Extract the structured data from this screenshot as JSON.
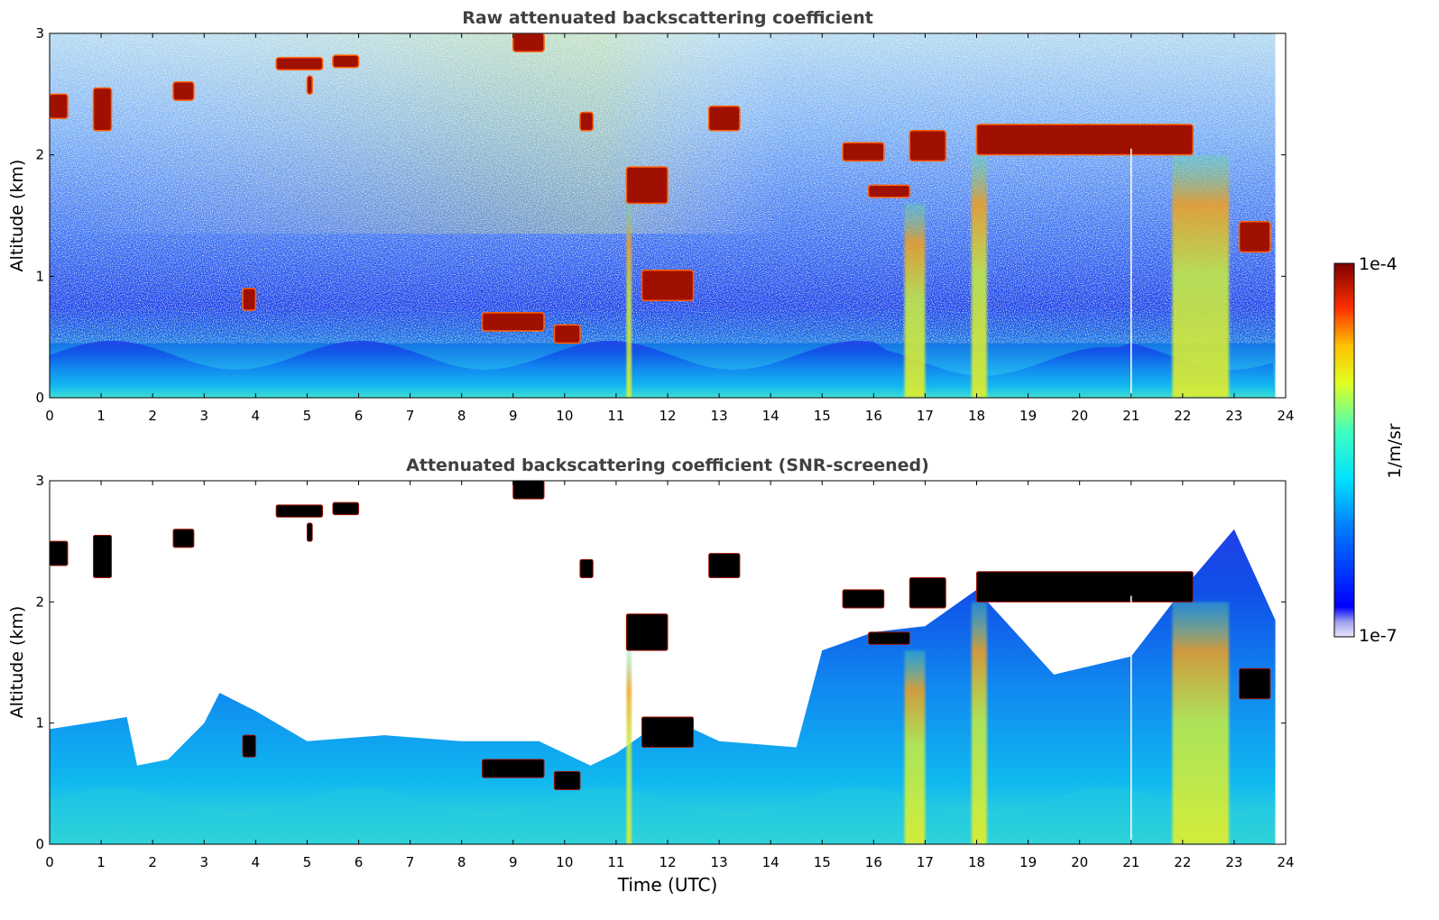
{
  "chart_data": [
    {
      "type": "heatmap",
      "title": "Raw attenuated backscattering coefficient",
      "xlabel": "",
      "ylabel": "Altitude (km)",
      "xlim": [
        0,
        24
      ],
      "ylim": [
        0,
        3
      ],
      "xticks": [
        "0",
        "1",
        "2",
        "3",
        "4",
        "5",
        "6",
        "7",
        "8",
        "9",
        "10",
        "11",
        "12",
        "13",
        "14",
        "15",
        "16",
        "17",
        "18",
        "19",
        "20",
        "21",
        "22",
        "23",
        "24"
      ],
      "yticks": [
        "0",
        "1",
        "2",
        "3"
      ],
      "grid": false,
      "colorscale": "jet, log",
      "clouds": [
        {
          "t0": 0.0,
          "t1": 0.35,
          "z0": 2.3,
          "z1": 2.5
        },
        {
          "t0": 0.85,
          "t1": 1.2,
          "z0": 2.2,
          "z1": 2.55
        },
        {
          "t0": 2.4,
          "t1": 2.8,
          "z0": 2.45,
          "z1": 2.6
        },
        {
          "t0": 4.4,
          "t1": 5.3,
          "z0": 2.7,
          "z1": 2.8
        },
        {
          "t0": 5.5,
          "t1": 6.0,
          "z0": 2.72,
          "z1": 2.82
        },
        {
          "t0": 5.0,
          "t1": 5.1,
          "z0": 2.5,
          "z1": 2.65
        },
        {
          "t0": 9.0,
          "t1": 9.6,
          "z0": 2.85,
          "z1": 3.0
        },
        {
          "t0": 10.3,
          "t1": 10.55,
          "z0": 2.2,
          "z1": 2.35
        },
        {
          "t0": 11.2,
          "t1": 12.0,
          "z0": 1.6,
          "z1": 1.9
        },
        {
          "t0": 12.8,
          "t1": 13.4,
          "z0": 2.2,
          "z1": 2.4
        },
        {
          "t0": 15.4,
          "t1": 16.2,
          "z0": 1.95,
          "z1": 2.1
        },
        {
          "t0": 16.7,
          "t1": 17.4,
          "z0": 1.95,
          "z1": 2.2
        },
        {
          "t0": 15.9,
          "t1": 16.7,
          "z0": 1.65,
          "z1": 1.75
        },
        {
          "t0": 18.0,
          "t1": 22.2,
          "z0": 2.0,
          "z1": 2.25
        },
        {
          "t0": 8.4,
          "t1": 9.6,
          "z0": 0.55,
          "z1": 0.7
        },
        {
          "t0": 9.8,
          "t1": 10.3,
          "z0": 0.45,
          "z1": 0.6
        },
        {
          "t0": 11.5,
          "t1": 12.5,
          "z0": 0.8,
          "z1": 1.05
        },
        {
          "t0": 23.1,
          "t1": 23.7,
          "z0": 1.2,
          "z1": 1.45
        },
        {
          "t0": 3.75,
          "t1": 4.0,
          "z0": 0.72,
          "z1": 0.9
        }
      ],
      "plumes": [
        {
          "t0": 21.8,
          "t1": 22.9,
          "z1": 2.0
        },
        {
          "t0": 16.6,
          "t1": 17.0,
          "z1": 1.6
        },
        {
          "t0": 17.9,
          "t1": 18.2,
          "z1": 2.0
        },
        {
          "t0": 11.2,
          "t1": 11.3,
          "z1": 1.6
        }
      ]
    },
    {
      "type": "heatmap",
      "title": "Attenuated backscattering coefficient (SNR-screened)",
      "xlabel": "Time (UTC)",
      "ylabel": "Altitude (km)",
      "xlim": [
        0,
        24
      ],
      "ylim": [
        0,
        3
      ],
      "xticks": [
        "0",
        "1",
        "2",
        "3",
        "4",
        "5",
        "6",
        "7",
        "8",
        "9",
        "10",
        "11",
        "12",
        "13",
        "14",
        "15",
        "16",
        "17",
        "18",
        "19",
        "20",
        "21",
        "22",
        "23",
        "24"
      ],
      "yticks": [
        "0",
        "1",
        "2",
        "3"
      ],
      "grid": false,
      "colorscale": "jet, log",
      "screen_top_km": [
        [
          0,
          0.95
        ],
        [
          1.5,
          1.05
        ],
        [
          1.7,
          0.65
        ],
        [
          2.3,
          0.7
        ],
        [
          3.0,
          1.0
        ],
        [
          3.3,
          1.25
        ],
        [
          4.0,
          1.1
        ],
        [
          5.0,
          0.85
        ],
        [
          6.5,
          0.9
        ],
        [
          8.0,
          0.85
        ],
        [
          9.5,
          0.85
        ],
        [
          10.5,
          0.65
        ],
        [
          11.0,
          0.75
        ],
        [
          12.0,
          1.05
        ],
        [
          13.0,
          0.85
        ],
        [
          14.5,
          0.8
        ],
        [
          15.0,
          1.6
        ],
        [
          16.0,
          1.75
        ],
        [
          17.0,
          1.8
        ],
        [
          18.0,
          2.1
        ],
        [
          19.5,
          1.4
        ],
        [
          21.0,
          1.55
        ],
        [
          22.0,
          2.1
        ],
        [
          23.0,
          2.6
        ],
        [
          23.8,
          1.85
        ]
      ]
    }
  ],
  "colorbar": {
    "label": "1/m/sr",
    "max_label": "1e-4",
    "min_label": "1e-7"
  },
  "colors": {
    "low": "#e8e8fc",
    "mid": "#00c8ff",
    "high": "#800000",
    "cloud_screened": "#000000"
  }
}
